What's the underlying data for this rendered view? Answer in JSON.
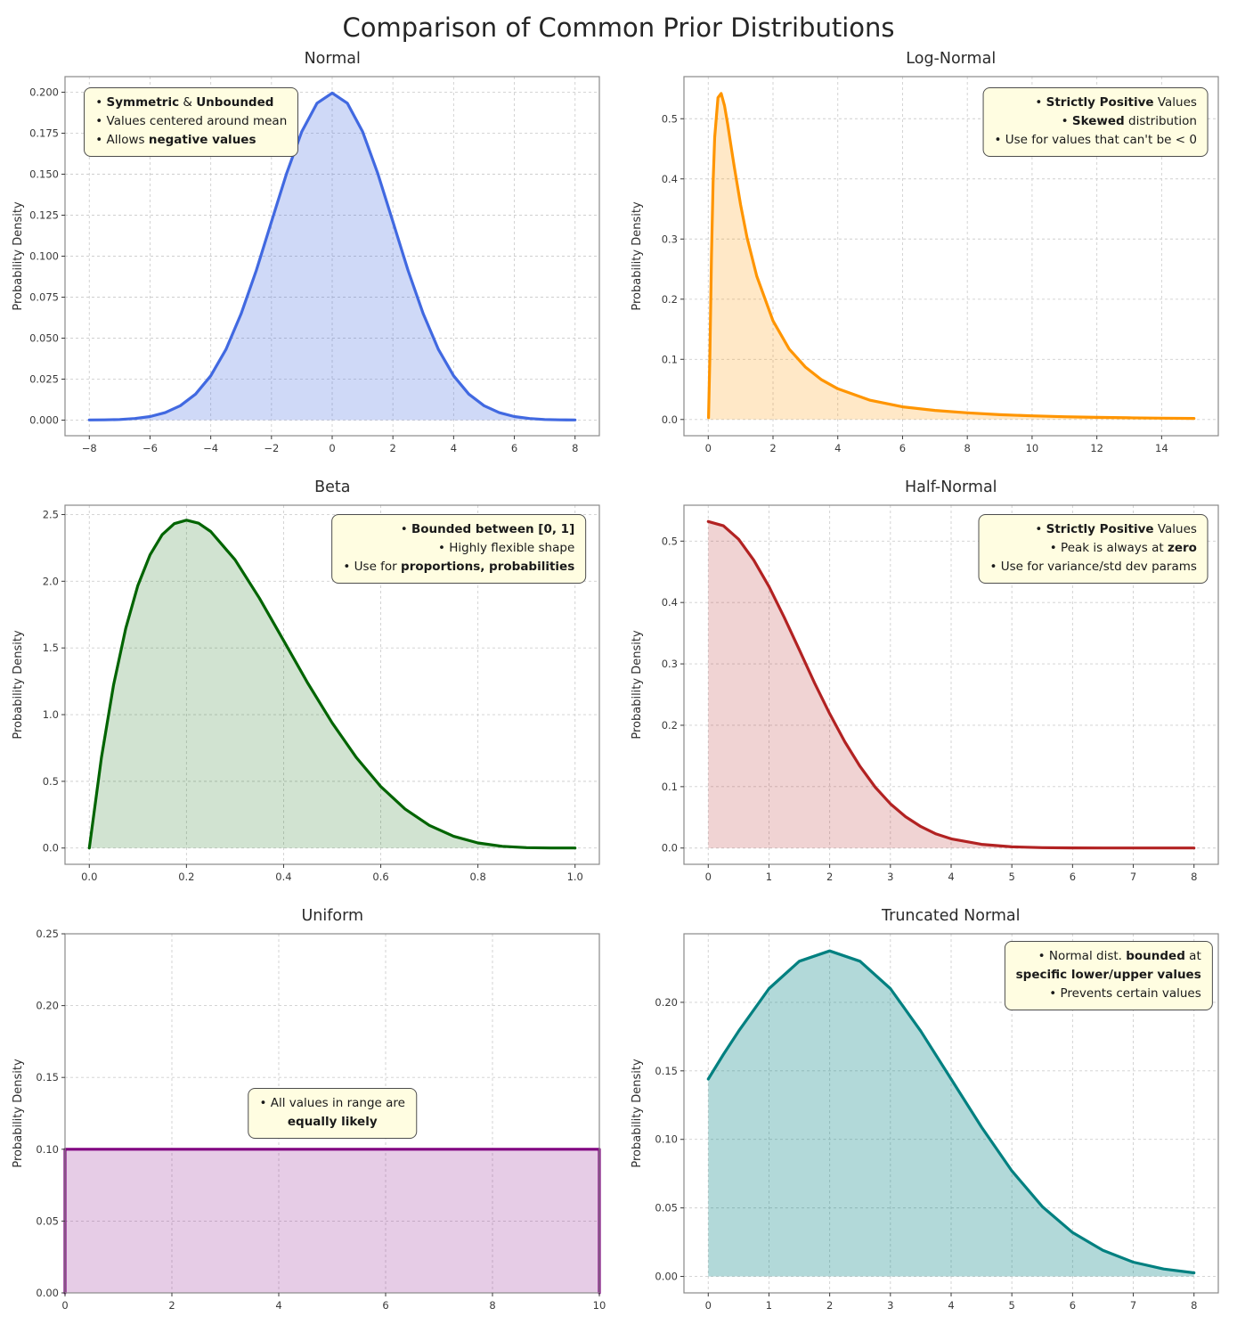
{
  "page": {
    "title": "Comparison of Common Prior Distributions"
  },
  "styles": {
    "annotation_bg": "#FFFDE1",
    "annotation_border": "#4D4D4D",
    "grid_color": "#CFCFCF",
    "spine_color": "#8A8A8A",
    "tick_color": "#3A3A3A"
  },
  "chart_data": [
    {
      "type": "area",
      "title": "Normal",
      "ylabel": "Probability Density",
      "color": "#4169E1",
      "fill_opacity": 0.25,
      "grid": true,
      "x": [
        -8,
        -7.5,
        -7,
        -6.5,
        -6,
        -5.5,
        -5,
        -4.5,
        -4,
        -3.5,
        -3,
        -2.5,
        -2,
        -1.5,
        -1,
        -0.5,
        0,
        0.5,
        1,
        1.5,
        2,
        2.5,
        3,
        3.5,
        4,
        4.5,
        5,
        5.5,
        6,
        6.5,
        7,
        7.5,
        8
      ],
      "y": [
        0.0001,
        0.0002,
        0.0004,
        0.001,
        0.0022,
        0.0046,
        0.0088,
        0.0159,
        0.027,
        0.0431,
        0.0648,
        0.0913,
        0.121,
        0.1506,
        0.176,
        0.1933,
        0.1995,
        0.1933,
        0.176,
        0.1506,
        0.121,
        0.0913,
        0.0648,
        0.0431,
        0.027,
        0.0159,
        0.0088,
        0.0046,
        0.0022,
        0.001,
        0.0004,
        0.0002,
        0.0001
      ],
      "xlim": [
        -8.8,
        8.8
      ],
      "ylim": [
        -0.0095,
        0.2095
      ],
      "xticks": [
        -8,
        -6,
        -4,
        -2,
        0,
        2,
        4,
        6,
        8
      ],
      "xtick_labels": [
        "−8",
        "−6",
        "−4",
        "−2",
        "0",
        "2",
        "4",
        "6",
        "8"
      ],
      "yticks": [
        0,
        0.025,
        0.05,
        0.075,
        0.1,
        0.125,
        0.15,
        0.175,
        0.2
      ],
      "ytick_labels": [
        "0.000",
        "0.025",
        "0.050",
        "0.075",
        "0.100",
        "0.125",
        "0.150",
        "0.175",
        "0.200"
      ],
      "annotation": {
        "fx": 0.035,
        "fy": 0.03,
        "anchor": "left",
        "text_align": "left",
        "lines": [
          [
            {
              "t": "• "
            },
            {
              "t": "Symmetric",
              "b": 1
            },
            {
              "t": " & "
            },
            {
              "t": "Unbounded",
              "b": 1
            }
          ],
          [
            {
              "t": "• Values centered around mean"
            }
          ],
          [
            {
              "t": "• Allows "
            },
            {
              "t": "negative values",
              "b": 1
            }
          ]
        ]
      }
    },
    {
      "type": "area",
      "title": "Log-Normal",
      "ylabel": "Probability Density",
      "color": "#FF9500",
      "fill_opacity": 0.22,
      "grid": true,
      "x": [
        0.01,
        0.05,
        0.1,
        0.15,
        0.2,
        0.3,
        0.4,
        0.5,
        0.6,
        0.7,
        0.8,
        1.0,
        1.2,
        1.5,
        2,
        2.5,
        3,
        3.5,
        4,
        5,
        6,
        7,
        8,
        9,
        10,
        11,
        12,
        13,
        14,
        15
      ],
      "y": [
        0.003,
        0.106,
        0.272,
        0.393,
        0.469,
        0.535,
        0.542,
        0.522,
        0.491,
        0.456,
        0.421,
        0.357,
        0.302,
        0.238,
        0.164,
        0.117,
        0.087,
        0.066,
        0.051,
        0.032,
        0.021,
        0.015,
        0.011,
        0.008,
        0.006,
        0.0045,
        0.0035,
        0.0028,
        0.0022,
        0.0018
      ],
      "xlim": [
        -0.75,
        15.75
      ],
      "ylim": [
        -0.027,
        0.57
      ],
      "xticks": [
        0,
        2,
        4,
        6,
        8,
        10,
        12,
        14
      ],
      "xtick_labels": [
        "0",
        "2",
        "4",
        "6",
        "8",
        "10",
        "12",
        "14"
      ],
      "yticks": [
        0,
        0.1,
        0.2,
        0.3,
        0.4,
        0.5
      ],
      "ytick_labels": [
        "0.0",
        "0.1",
        "0.2",
        "0.3",
        "0.4",
        "0.5"
      ],
      "annotation": {
        "fx": 0.982,
        "fy": 0.03,
        "anchor": "right",
        "text_align": "right",
        "lines": [
          [
            {
              "t": "• "
            },
            {
              "t": "Strictly Positive",
              "b": 1
            },
            {
              "t": " Values"
            }
          ],
          [
            {
              "t": "• "
            },
            {
              "t": "Skewed",
              "b": 1
            },
            {
              "t": " distribution"
            }
          ],
          [
            {
              "t": "• Use for values that can't be < 0"
            }
          ]
        ]
      }
    },
    {
      "type": "area",
      "title": "Beta",
      "ylabel": "Probability Density",
      "color": "#006400",
      "fill_opacity": 0.18,
      "grid": true,
      "x": [
        0,
        0.025,
        0.05,
        0.075,
        0.1,
        0.125,
        0.15,
        0.175,
        0.2,
        0.225,
        0.25,
        0.3,
        0.35,
        0.4,
        0.45,
        0.5,
        0.55,
        0.6,
        0.65,
        0.7,
        0.75,
        0.8,
        0.85,
        0.9,
        0.95,
        1.0
      ],
      "y": [
        0,
        0.678,
        1.222,
        1.647,
        1.968,
        2.198,
        2.349,
        2.432,
        2.458,
        2.435,
        2.373,
        2.161,
        1.874,
        1.555,
        1.235,
        0.938,
        0.677,
        0.461,
        0.293,
        0.17,
        0.088,
        0.038,
        0.013,
        0.003,
        0.0002,
        0
      ],
      "xlim": [
        -0.05,
        1.05
      ],
      "ylim": [
        -0.122,
        2.57
      ],
      "xticks": [
        0,
        0.2,
        0.4,
        0.6,
        0.8,
        1.0
      ],
      "xtick_labels": [
        "0.0",
        "0.2",
        "0.4",
        "0.6",
        "0.8",
        "1.0"
      ],
      "yticks": [
        0,
        0.5,
        1.0,
        1.5,
        2.0,
        2.5
      ],
      "ytick_labels": [
        "0.0",
        "0.5",
        "1.0",
        "1.5",
        "2.0",
        "2.5"
      ],
      "annotation": {
        "fx": 0.975,
        "fy": 0.025,
        "anchor": "right",
        "text_align": "right",
        "lines": [
          [
            {
              "t": "• "
            },
            {
              "t": "Bounded between [0, 1]",
              "b": 1
            }
          ],
          [
            {
              "t": "• Highly flexible shape"
            }
          ],
          [
            {
              "t": "• Use for "
            },
            {
              "t": "proportions, probabilities",
              "b": 1
            }
          ]
        ]
      }
    },
    {
      "type": "area",
      "title": "Half-Normal",
      "ylabel": "Probability Density",
      "color": "#B22222",
      "fill_opacity": 0.2,
      "grid": true,
      "x": [
        0,
        0.25,
        0.5,
        0.75,
        1,
        1.25,
        1.5,
        1.75,
        2,
        2.25,
        2.5,
        2.75,
        3,
        3.25,
        3.5,
        3.75,
        4,
        4.5,
        5,
        5.5,
        6,
        6.5,
        7,
        7.5,
        8
      ],
      "y": [
        0.532,
        0.525,
        0.503,
        0.469,
        0.426,
        0.376,
        0.323,
        0.269,
        0.219,
        0.173,
        0.133,
        0.099,
        0.072,
        0.051,
        0.035,
        0.023,
        0.015,
        0.006,
        0.002,
        0.0007,
        0.0002,
        0.0001,
        5e-05,
        2e-05,
        1e-05
      ],
      "xlim": [
        -0.4,
        8.4
      ],
      "ylim": [
        -0.0265,
        0.5585
      ],
      "xticks": [
        0,
        1,
        2,
        3,
        4,
        5,
        6,
        7,
        8
      ],
      "xtick_labels": [
        "0",
        "1",
        "2",
        "3",
        "4",
        "5",
        "6",
        "7",
        "8"
      ],
      "yticks": [
        0,
        0.1,
        0.2,
        0.3,
        0.4,
        0.5
      ],
      "ytick_labels": [
        "0.0",
        "0.1",
        "0.2",
        "0.3",
        "0.4",
        "0.5"
      ],
      "annotation": {
        "fx": 0.982,
        "fy": 0.025,
        "anchor": "right",
        "text_align": "right",
        "lines": [
          [
            {
              "t": "• "
            },
            {
              "t": "Strictly Positive",
              "b": 1
            },
            {
              "t": " Values"
            }
          ],
          [
            {
              "t": "• Peak is always at "
            },
            {
              "t": "zero",
              "b": 1
            }
          ],
          [
            {
              "t": "• Use for variance/std dev params"
            }
          ]
        ]
      }
    },
    {
      "type": "area",
      "title": "Uniform",
      "ylabel": "Probability Density",
      "color": "#800080",
      "fill_opacity": 0.2,
      "grid": true,
      "x": [
        0,
        0,
        10,
        10
      ],
      "y": [
        0,
        0.1,
        0.1,
        0
      ],
      "xlim": [
        0,
        10
      ],
      "ylim": [
        0,
        0.25
      ],
      "xticks": [
        0,
        2,
        4,
        6,
        8,
        10
      ],
      "xtick_labels": [
        "0",
        "2",
        "4",
        "6",
        "8",
        "10"
      ],
      "yticks": [
        0,
        0.05,
        0.1,
        0.15,
        0.2,
        0.25
      ],
      "ytick_labels": [
        "0.00",
        "0.05",
        "0.10",
        "0.15",
        "0.20",
        "0.25"
      ],
      "annotation": {
        "fx": 0.5,
        "fy": 0.43,
        "anchor": "center",
        "text_align": "center",
        "lines": [
          [
            {
              "t": "• All values in range are"
            }
          ],
          [
            {
              "t": "equally likely",
              "b": 1
            }
          ]
        ]
      }
    },
    {
      "type": "area",
      "title": "Truncated Normal",
      "ylabel": "Probability Density",
      "color": "#008080",
      "fill_opacity": 0.3,
      "grid": true,
      "x": [
        0,
        0.25,
        0.5,
        1,
        1.5,
        2,
        2.5,
        3,
        3.5,
        4,
        4.5,
        5,
        5.5,
        6,
        6.5,
        7,
        7.5,
        8
      ],
      "y": [
        0.144,
        0.162,
        0.179,
        0.21,
        0.23,
        0.2375,
        0.23,
        0.21,
        0.179,
        0.144,
        0.109,
        0.077,
        0.051,
        0.032,
        0.019,
        0.0104,
        0.0054,
        0.0026
      ],
      "xlim": [
        -0.4,
        8.4
      ],
      "ylim": [
        -0.012,
        0.25
      ],
      "xticks": [
        0,
        1,
        2,
        3,
        4,
        5,
        6,
        7,
        8
      ],
      "xtick_labels": [
        "0",
        "1",
        "2",
        "3",
        "4",
        "5",
        "6",
        "7",
        "8"
      ],
      "yticks": [
        0,
        0.05,
        0.1,
        0.15,
        0.2
      ],
      "ytick_labels": [
        "0.00",
        "0.05",
        "0.10",
        "0.15",
        "0.20"
      ],
      "annotation": {
        "fx": 0.99,
        "fy": 0.02,
        "anchor": "right",
        "text_align": "right",
        "lines": [
          [
            {
              "t": "• Normal dist. "
            },
            {
              "t": "bounded",
              "b": 1
            },
            {
              "t": " at"
            }
          ],
          [
            {
              "t": "specific lower/upper values",
              "b": 1
            }
          ],
          [
            {
              "t": "• Prevents certain values"
            }
          ]
        ]
      }
    }
  ]
}
